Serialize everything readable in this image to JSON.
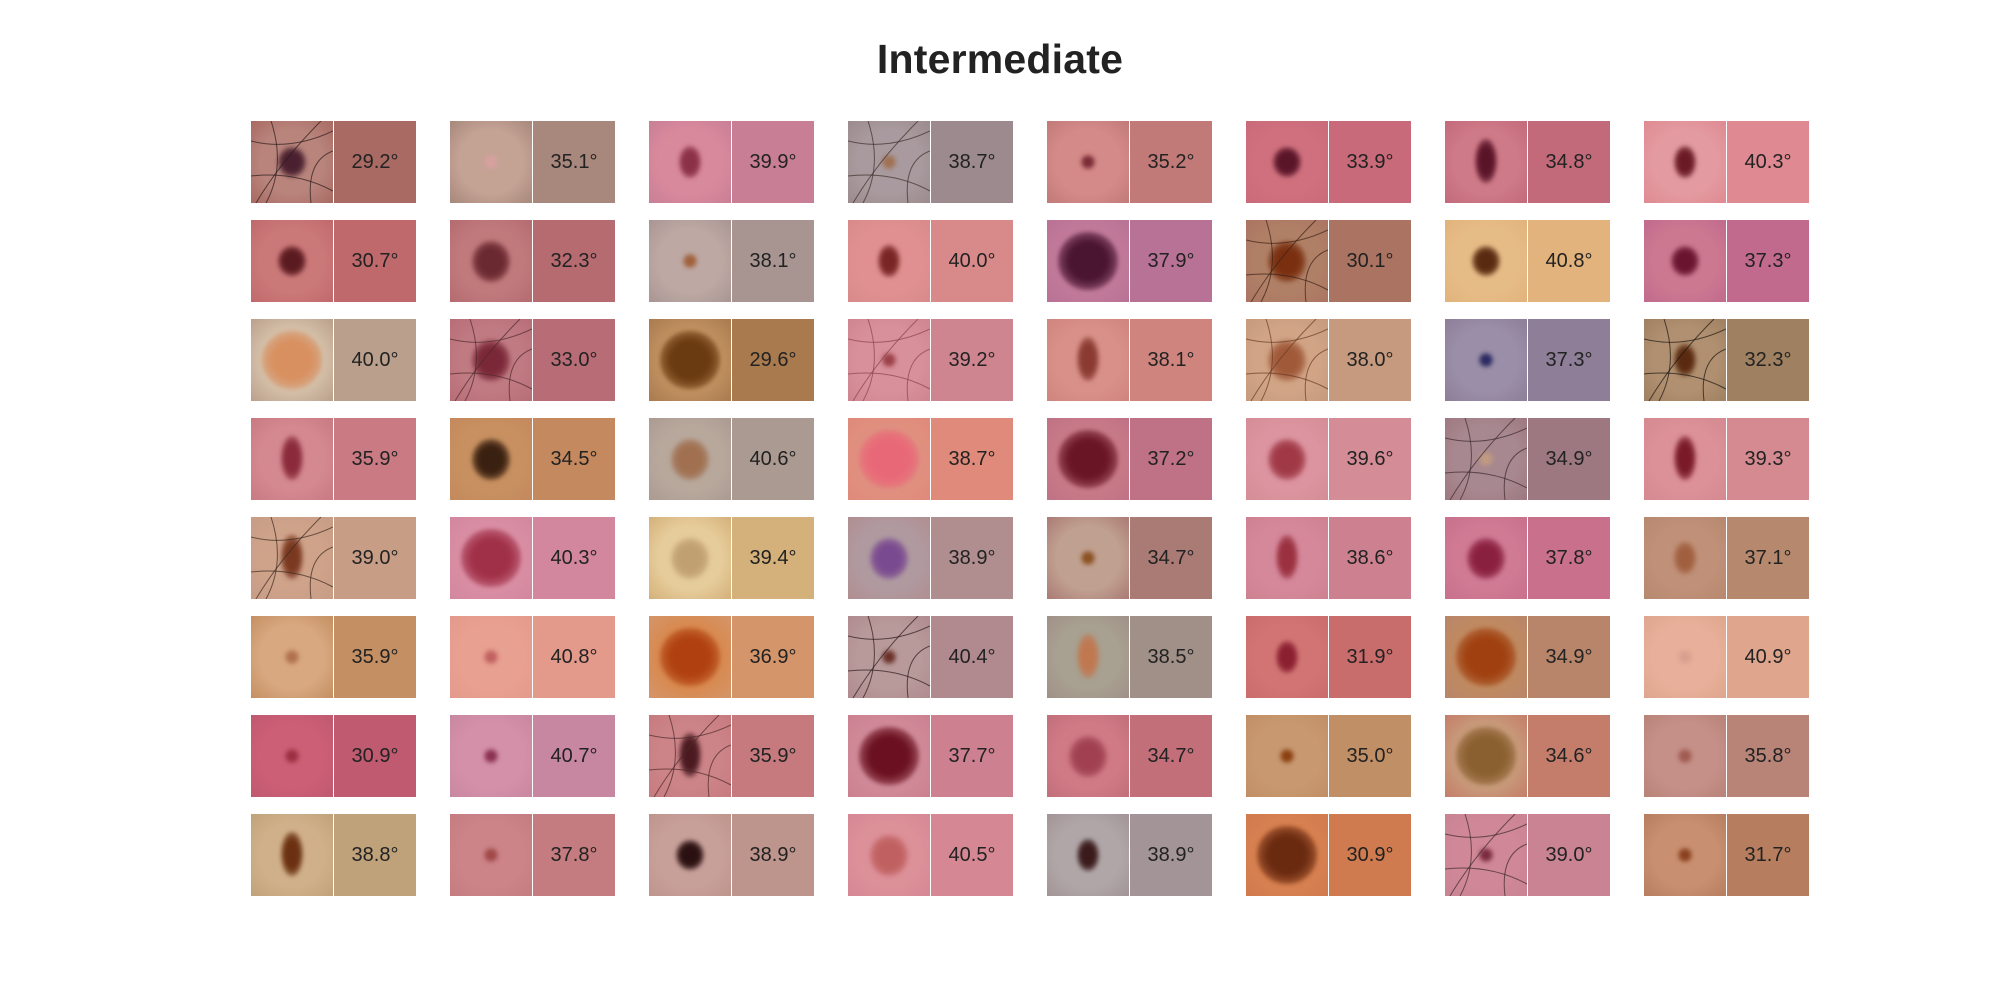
{
  "title": "Intermediate",
  "cells": [
    {
      "angle": "29.2°",
      "color": "#a86a62",
      "skin": "#b8847c",
      "lesion": "#4a2030",
      "hair": "#2a1a1a",
      "shape": "round"
    },
    {
      "angle": "35.1°",
      "color": "#a8877c",
      "skin": "#c4a395",
      "lesion": "#d8a0a0",
      "shape": "small"
    },
    {
      "angle": "39.9°",
      "color": "#c87f96",
      "skin": "#d9899c",
      "lesion": "#8a3047",
      "shape": "oval"
    },
    {
      "angle": "38.7°",
      "color": "#9c8a8e",
      "skin": "#a89a9e",
      "lesion": "#a07050",
      "hair": "#3a2e2a",
      "shape": "small"
    },
    {
      "angle": "35.2°",
      "color": "#c17a78",
      "skin": "#d48a88",
      "lesion": "#7a2a35",
      "shape": "small"
    },
    {
      "angle": "33.9°",
      "color": "#c96a7a",
      "skin": "#d0707e",
      "lesion": "#5a1528",
      "shape": "round"
    },
    {
      "angle": "34.8°",
      "color": "#c26a7a",
      "skin": "#cf7a88",
      "lesion": "#5a1428",
      "shape": "tall"
    },
    {
      "angle": "40.3°",
      "color": "#df8a92",
      "skin": "#e39aa0",
      "lesion": "#6a1a25",
      "shape": "oval"
    },
    {
      "angle": "30.7°",
      "color": "#c0696c",
      "skin": "#cb7878",
      "lesion": "#5a1a20",
      "shape": "round"
    },
    {
      "angle": "32.3°",
      "color": "#b56b70",
      "skin": "#c07a7c",
      "lesion": "#6a2830",
      "shape": "blob"
    },
    {
      "angle": "38.1°",
      "color": "#a89592",
      "skin": "#bda8a3",
      "lesion": "#a0603a",
      "shape": "small"
    },
    {
      "angle": "40.0°",
      "color": "#d88a8a",
      "skin": "#e09090",
      "lesion": "#7a2525",
      "shape": "oval"
    },
    {
      "angle": "37.9°",
      "color": "#b87295",
      "skin": "#c27a9a",
      "lesion": "#4a1530",
      "shape": "big"
    },
    {
      "angle": "30.1°",
      "color": "#ab7462",
      "skin": "#b08066",
      "lesion": "#7a3010",
      "hair": "#3a2015",
      "shape": "blob"
    },
    {
      "angle": "40.8°",
      "color": "#e2b37c",
      "skin": "#e6bc86",
      "lesion": "#5a2a10",
      "shape": "round"
    },
    {
      "angle": "37.3°",
      "color": "#c16a8e",
      "skin": "#cc7890",
      "lesion": "#6a1530",
      "shape": "round"
    },
    {
      "angle": "40.0°",
      "color": "#baa08c",
      "skin": "#d4bfa8",
      "lesion": "#d89060",
      "shape": "big"
    },
    {
      "angle": "33.0°",
      "color": "#b86d76",
      "skin": "#c07a82",
      "lesion": "#7a2838",
      "hair": "#4a2a2a",
      "shape": "blob"
    },
    {
      "angle": "29.6°",
      "color": "#a87a4e",
      "skin": "#c09060",
      "lesion": "#6a3a10",
      "shape": "big"
    },
    {
      "angle": "39.2°",
      "color": "#cf8590",
      "skin": "#d8909a",
      "lesion": "#9a4048",
      "hair": "#8a4050",
      "shape": "small"
    },
    {
      "angle": "38.1°",
      "color": "#cf857d",
      "skin": "#d89088",
      "lesion": "#8a3a30",
      "shape": "tall"
    },
    {
      "angle": "38.0°",
      "color": "#c69a7e",
      "skin": "#d0a485",
      "lesion": "#a05a3a",
      "hair": "#6a3a25",
      "shape": "blob"
    },
    {
      "angle": "37.3°",
      "color": "#8e7e98",
      "skin": "#9a8ea8",
      "lesion": "#2a2a60",
      "shape": "small"
    },
    {
      "angle": "32.3°",
      "color": "#9f8060",
      "skin": "#b09070",
      "lesion": "#5a2a10",
      "hair": "#1a1410",
      "shape": "oval"
    },
    {
      "angle": "35.9°",
      "color": "#c97a82",
      "skin": "#d48890",
      "lesion": "#8a2a3a",
      "shape": "tall"
    },
    {
      "angle": "34.5°",
      "color": "#c4895e",
      "skin": "#c89060",
      "lesion": "#3a2010",
      "shape": "blob"
    },
    {
      "angle": "40.6°",
      "color": "#aa9a92",
      "skin": "#b8a89c",
      "lesion": "#a07050",
      "shape": "blob"
    },
    {
      "angle": "38.7°",
      "color": "#df8a7a",
      "skin": "#e09080",
      "lesion": "#e86878",
      "shape": "big"
    },
    {
      "angle": "37.2°",
      "color": "#bf7285",
      "skin": "#c87a88",
      "lesion": "#6a1525",
      "shape": "big"
    },
    {
      "angle": "39.6°",
      "color": "#d48c96",
      "skin": "#dc94a0",
      "lesion": "#a03845",
      "shape": "blob"
    },
    {
      "angle": "34.9°",
      "color": "#9e7880",
      "skin": "#a88890",
      "lesion": "#c09a80",
      "hair": "#3a2a2a",
      "shape": "small"
    },
    {
      "angle": "39.3°",
      "color": "#d48a90",
      "skin": "#dc9098",
      "lesion": "#7a1a28",
      "shape": "tall"
    },
    {
      "angle": "39.0°",
      "color": "#c79d85",
      "skin": "#cfa28a",
      "lesion": "#7a3820",
      "hair": "#3a2a20",
      "shape": "tall"
    },
    {
      "angle": "40.3°",
      "color": "#d2879f",
      "skin": "#da8ea4",
      "lesion": "#a03048",
      "shape": "big"
    },
    {
      "angle": "39.4°",
      "color": "#d4b07a",
      "skin": "#e6cc9a",
      "lesion": "#c0a070",
      "shape": "blob"
    },
    {
      "angle": "38.9°",
      "color": "#b08e90",
      "skin": "#b09aa0",
      "lesion": "#7a4a90",
      "shape": "blob"
    },
    {
      "angle": "34.7°",
      "color": "#aa7a74",
      "skin": "#c0a090",
      "lesion": "#8a5020",
      "shape": "small"
    },
    {
      "angle": "38.6°",
      "color": "#cd8190",
      "skin": "#d4889a",
      "lesion": "#9a3040",
      "shape": "tall"
    },
    {
      "angle": "37.8°",
      "color": "#c8708c",
      "skin": "#d07a94",
      "lesion": "#8a2040",
      "shape": "blob"
    },
    {
      "angle": "37.1°",
      "color": "#b6896e",
      "skin": "#c09078",
      "lesion": "#a06040",
      "shape": "oval"
    },
    {
      "angle": "35.9°",
      "color": "#c48f62",
      "skin": "#d8a880",
      "lesion": "#b07050",
      "shape": "small"
    },
    {
      "angle": "40.8°",
      "color": "#e49a8a",
      "skin": "#e8a090",
      "lesion": "#c06060",
      "shape": "small"
    },
    {
      "angle": "36.9°",
      "color": "#d4956a",
      "skin": "#d88a50",
      "lesion": "#b04010",
      "shape": "big"
    },
    {
      "angle": "40.4°",
      "color": "#b08a8e",
      "skin": "#b89a9a",
      "lesion": "#6a3028",
      "hair": "#2a1818",
      "shape": "small"
    },
    {
      "angle": "38.5°",
      "color": "#a09088",
      "skin": "#a8a090",
      "lesion": "#c07850",
      "shape": "tall"
    },
    {
      "angle": "31.9°",
      "color": "#c96c6c",
      "skin": "#d27474",
      "lesion": "#8a2030",
      "shape": "oval"
    },
    {
      "angle": "34.9°",
      "color": "#b8856a",
      "skin": "#c08a60",
      "lesion": "#a04010",
      "shape": "big"
    },
    {
      "angle": "40.9°",
      "color": "#dfa58d",
      "skin": "#e8b09a",
      "lesion": "#d8a090",
      "shape": "small"
    },
    {
      "angle": "30.9°",
      "color": "#bf5a70",
      "skin": "#cc5e76",
      "lesion": "#9a3040",
      "shape": "small"
    },
    {
      "angle": "40.7°",
      "color": "#c887a0",
      "skin": "#d490a8",
      "lesion": "#8a3050",
      "shape": "small"
    },
    {
      "angle": "35.9°",
      "color": "#c67a7e",
      "skin": "#cc8488",
      "lesion": "#4a1a20",
      "hair": "#4a2a2a",
      "shape": "tall"
    },
    {
      "angle": "37.7°",
      "color": "#cc8090",
      "skin": "#d08a98",
      "lesion": "#6a1020",
      "shape": "big"
    },
    {
      "angle": "34.7°",
      "color": "#c26f7a",
      "skin": "#d07a86",
      "lesion": "#a04050",
      "shape": "blob"
    },
    {
      "angle": "35.0°",
      "color": "#c18f66",
      "skin": "#c89870",
      "lesion": "#8a4010",
      "shape": "small"
    },
    {
      "angle": "34.6°",
      "color": "#c47d6a",
      "skin": "#c89a7a",
      "lesion": "#8a6030",
      "shape": "big"
    },
    {
      "angle": "35.8°",
      "color": "#b88478",
      "skin": "#c49088",
      "lesion": "#a05a50",
      "shape": "small"
    },
    {
      "angle": "38.8°",
      "color": "#c0a27a",
      "skin": "#d0b08a",
      "lesion": "#6a3010",
      "shape": "tall"
    },
    {
      "angle": "37.8°",
      "color": "#c47c80",
      "skin": "#cc8488",
      "lesion": "#a04848",
      "shape": "small"
    },
    {
      "angle": "38.9°",
      "color": "#be958c",
      "skin": "#c8a09a",
      "lesion": "#2a1010",
      "shape": "round"
    },
    {
      "angle": "40.5°",
      "color": "#d58894",
      "skin": "#dc9098",
      "lesion": "#c06060",
      "shape": "blob"
    },
    {
      "angle": "38.9°",
      "color": "#a29497",
      "skin": "#b0a6a8",
      "lesion": "#3a1a1a",
      "shape": "oval"
    },
    {
      "angle": "30.9°",
      "color": "#cf7b4f",
      "skin": "#d88050",
      "lesion": "#6a2a10",
      "shape": "big"
    },
    {
      "angle": "39.0°",
      "color": "#c98393",
      "skin": "#d08898",
      "lesion": "#7a2a40",
      "hair": "#3a2a2a",
      "shape": "small"
    },
    {
      "angle": "31.7°",
      "color": "#b67e5e",
      "skin": "#c89070",
      "lesion": "#8a4020",
      "shape": "small"
    }
  ]
}
